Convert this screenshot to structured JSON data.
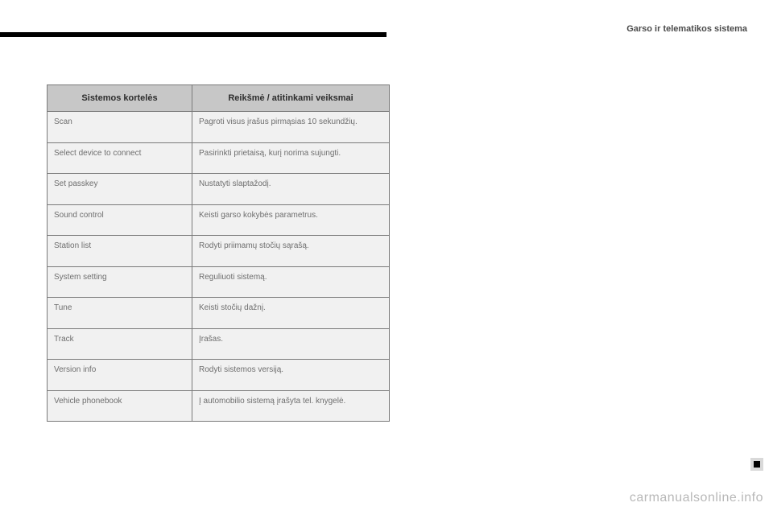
{
  "header": {
    "section_title": "Garso ir telematikos sistema"
  },
  "table": {
    "col1_header": "Sistemos kortelės",
    "col2_header": "Reikšmė / atitinkami veiksmai",
    "rows": [
      {
        "c1": "Scan",
        "c2": "Pagroti visus įrašus pirmąsias 10 sekundžių."
      },
      {
        "c1": "Select device to connect",
        "c2": "Pasirinkti prietaisą, kurį norima sujungti."
      },
      {
        "c1": "Set passkey",
        "c2": "Nustatyti slaptažodį."
      },
      {
        "c1": "Sound control",
        "c2": "Keisti garso kokybės parametrus."
      },
      {
        "c1": "Station list",
        "c2": "Rodyti priimamų stočių sąrašą."
      },
      {
        "c1": "System setting",
        "c2": "Reguliuoti sistemą."
      },
      {
        "c1": "Tune",
        "c2": "Keisti stočių dažnį."
      },
      {
        "c1": "Track",
        "c2": "Įrašas."
      },
      {
        "c1": "Version info",
        "c2": "Rodyti sistemos versiją."
      },
      {
        "c1": "Vehicle phonebook",
        "c2": "Į automobilio sistemą įrašyta tel. knygelė."
      }
    ]
  },
  "footer": {
    "watermark": "carmanualsonline.info"
  }
}
